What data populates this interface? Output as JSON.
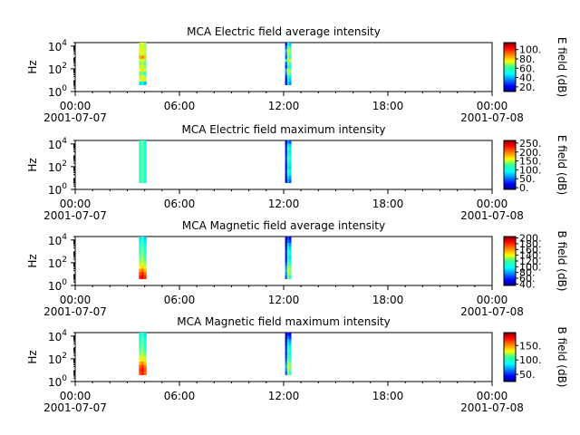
{
  "chart_data": [
    {
      "type": "heatmap",
      "title": "MCA  Electric field average intensity",
      "ylabel": "Hz",
      "yscale": "log",
      "ylim": [
        1,
        20000
      ],
      "y_ticks": [
        {
          "base": "10",
          "exp": "0"
        },
        {
          "base": "10",
          "exp": "2"
        },
        {
          "base": "10",
          "exp": "4"
        }
      ],
      "x_ticks": [
        {
          "time": "00:00",
          "date": "2001-07-07"
        },
        {
          "time": "06:00",
          "date": ""
        },
        {
          "time": "12:00",
          "date": ""
        },
        {
          "time": "18:00",
          "date": ""
        },
        {
          "time": "00:00",
          "date": "2001-07-08"
        }
      ],
      "x_range": [
        "2001-07-07 00:00",
        "2001-07-08 00:00"
      ],
      "colorbar": {
        "label": "E field (dB)",
        "ticks": [
          "20.",
          "40.",
          "60.",
          "80.",
          "100."
        ],
        "range": [
          10,
          115
        ]
      },
      "segments": [
        {
          "start": "2001-07-07 03:40",
          "end": "2001-07-07 04:05",
          "freq_range": [
            4,
            20000
          ],
          "level": "mid-high (approx. 55-95 dB)"
        },
        {
          "start": "2001-07-07 12:05",
          "end": "2001-07-07 12:25",
          "freq_range": [
            4,
            20000
          ],
          "level": "mid (approx. 40-85 dB)"
        }
      ]
    },
    {
      "type": "heatmap",
      "title": "MCA  Electric field maximum intensity",
      "ylabel": "Hz",
      "yscale": "log",
      "ylim": [
        1,
        20000
      ],
      "y_ticks": [
        {
          "base": "10",
          "exp": "0"
        },
        {
          "base": "10",
          "exp": "2"
        },
        {
          "base": "10",
          "exp": "4"
        }
      ],
      "x_ticks": [
        {
          "time": "00:00",
          "date": "2001-07-07"
        },
        {
          "time": "06:00",
          "date": ""
        },
        {
          "time": "12:00",
          "date": ""
        },
        {
          "time": "18:00",
          "date": ""
        },
        {
          "time": "00:00",
          "date": "2001-07-08"
        }
      ],
      "x_range": [
        "2001-07-07 00:00",
        "2001-07-08 00:00"
      ],
      "colorbar": {
        "label": "E field (dB)",
        "ticks": [
          "0.",
          "50.",
          "100.",
          "150.",
          "200.",
          "250."
        ],
        "range": [
          -10,
          265
        ]
      },
      "segments": [
        {
          "start": "2001-07-07 03:40",
          "end": "2001-07-07 04:05",
          "freq_range": [
            4,
            20000
          ],
          "level": "approx. 100-120 dB"
        },
        {
          "start": "2001-07-07 12:05",
          "end": "2001-07-07 12:25",
          "freq_range": [
            4,
            20000
          ],
          "level": "approx. 50-120 dB"
        }
      ]
    },
    {
      "type": "heatmap",
      "title": "MCA  Magnetic field average intensity",
      "ylabel": "Hz",
      "yscale": "log",
      "ylim": [
        1,
        20000
      ],
      "y_ticks": [
        {
          "base": "10",
          "exp": "0"
        },
        {
          "base": "10",
          "exp": "2"
        },
        {
          "base": "10",
          "exp": "4"
        }
      ],
      "x_ticks": [
        {
          "time": "00:00",
          "date": "2001-07-07"
        },
        {
          "time": "06:00",
          "date": ""
        },
        {
          "time": "12:00",
          "date": ""
        },
        {
          "time": "18:00",
          "date": ""
        },
        {
          "time": "00:00",
          "date": "2001-07-08"
        }
      ],
      "x_range": [
        "2001-07-07 00:00",
        "2001-07-08 00:00"
      ],
      "colorbar": {
        "label": "B field (dB)",
        "ticks": [
          "40.",
          "60.",
          "80.",
          "100.",
          "120.",
          "140.",
          "160.",
          "180.",
          "200."
        ],
        "range": [
          35,
          205
        ]
      },
      "segments": [
        {
          "start": "2001-07-07 03:40",
          "end": "2001-07-07 04:05",
          "freq_range": [
            4,
            20000
          ],
          "level": "approx. 100-190 dB, highest at low frequency"
        },
        {
          "start": "2001-07-07 12:05",
          "end": "2001-07-07 12:25",
          "freq_range": [
            4,
            20000
          ],
          "level": "approx. 50-140 dB"
        }
      ]
    },
    {
      "type": "heatmap",
      "title": "MCA  Magnetic field maximum intensity",
      "ylabel": "Hz",
      "yscale": "log",
      "ylim": [
        1,
        20000
      ],
      "y_ticks": [
        {
          "base": "10",
          "exp": "0"
        },
        {
          "base": "10",
          "exp": "2"
        },
        {
          "base": "10",
          "exp": "4"
        }
      ],
      "x_ticks": [
        {
          "time": "00:00",
          "date": "2001-07-07"
        },
        {
          "time": "06:00",
          "date": ""
        },
        {
          "time": "12:00",
          "date": ""
        },
        {
          "time": "18:00",
          "date": ""
        },
        {
          "time": "00:00",
          "date": "2001-07-08"
        }
      ],
      "x_range": [
        "2001-07-07 00:00",
        "2001-07-08 00:00"
      ],
      "colorbar": {
        "label": "B field (dB)",
        "ticks": [
          "50.",
          "100.",
          "150."
        ],
        "range": [
          25,
          195
        ]
      },
      "segments": [
        {
          "start": "2001-07-07 03:40",
          "end": "2001-07-07 04:05",
          "freq_range": [
            4,
            20000
          ],
          "level": "approx. 90-190 dB, highest at low frequency"
        },
        {
          "start": "2001-07-07 12:05",
          "end": "2001-07-07 12:25",
          "freq_range": [
            4,
            20000
          ],
          "level": "approx. 50-140 dB"
        }
      ]
    }
  ]
}
